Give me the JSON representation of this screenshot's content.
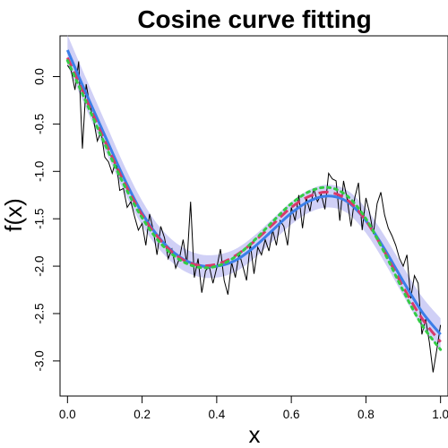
{
  "chart_data": {
    "type": "line",
    "title": "Cosine curve fitting",
    "xlabel": "x",
    "ylabel": "f(x)",
    "xlim": [
      -0.02,
      1.02
    ],
    "ylim": [
      -3.37,
      0.43
    ],
    "xticks": [
      "0.0",
      "0.2",
      "0.4",
      "0.6",
      "0.8",
      "1.0"
    ],
    "yticks": [
      "0.0",
      "-0.5",
      "-1.0",
      "-1.5",
      "-2.0",
      "-2.5",
      "-3.0"
    ],
    "colors": {
      "observed": "#000000",
      "band": "#c8c8f4",
      "blue": "#3b7ee8",
      "red": "#d8386a",
      "green": "#33cc44"
    },
    "series": [
      {
        "style": "thin black polyline",
        "x": [
          0.0,
          0.01,
          0.02,
          0.03,
          0.04,
          0.05,
          0.06,
          0.07,
          0.08,
          0.09,
          0.1,
          0.11,
          0.12,
          0.13,
          0.14,
          0.15,
          0.16,
          0.17,
          0.18,
          0.19,
          0.2,
          0.21,
          0.22,
          0.23,
          0.24,
          0.25,
          0.26,
          0.27,
          0.28,
          0.29,
          0.3,
          0.31,
          0.32,
          0.33,
          0.34,
          0.35,
          0.36,
          0.37,
          0.38,
          0.39,
          0.4,
          0.41,
          0.42,
          0.43,
          0.44,
          0.45,
          0.46,
          0.47,
          0.48,
          0.49,
          0.5,
          0.51,
          0.52,
          0.53,
          0.54,
          0.55,
          0.56,
          0.57,
          0.58,
          0.59,
          0.6,
          0.61,
          0.62,
          0.63,
          0.64,
          0.65,
          0.66,
          0.67,
          0.68,
          0.69,
          0.7,
          0.71,
          0.72,
          0.73,
          0.74,
          0.75,
          0.76,
          0.77,
          0.78,
          0.79,
          0.8,
          0.81,
          0.82,
          0.83,
          0.84,
          0.85,
          0.86,
          0.87,
          0.88,
          0.89,
          0.9,
          0.91,
          0.92,
          0.93,
          0.94,
          0.95,
          0.96,
          0.97,
          0.98,
          0.99,
          1.0
        ],
        "y": [
          0.12,
          0.06,
          -0.14,
          0.16,
          -0.76,
          -0.08,
          -0.3,
          -0.46,
          -0.68,
          -0.58,
          -0.85,
          -0.9,
          -1.02,
          -0.88,
          -1.2,
          -1.18,
          -1.38,
          -1.32,
          -1.48,
          -1.62,
          -1.55,
          -1.78,
          -1.45,
          -1.62,
          -1.88,
          -1.58,
          -1.7,
          -1.92,
          -1.82,
          -2.02,
          -1.92,
          -1.72,
          -1.98,
          -1.32,
          -2.12,
          -1.92,
          -2.28,
          -2.05,
          -2.0,
          -2.18,
          -2.02,
          -1.82,
          -2.15,
          -2.3,
          -1.96,
          -2.12,
          -1.86,
          -2.0,
          -2.15,
          -1.76,
          -2.08,
          -1.8,
          -1.88,
          -1.72,
          -1.84,
          -1.62,
          -1.78,
          -1.52,
          -1.58,
          -1.78,
          -1.38,
          -1.52,
          -1.25,
          -1.6,
          -1.28,
          -1.42,
          -1.18,
          -1.32,
          -1.24,
          -1.4,
          -1.02,
          -1.08,
          -1.1,
          -1.52,
          -1.1,
          -1.3,
          -1.58,
          -1.28,
          -1.12,
          -1.62,
          -1.28,
          -1.44,
          -1.66,
          -1.34,
          -1.22,
          -1.46,
          -1.6,
          -1.68,
          -1.78,
          -1.92,
          -2.0,
          -1.88,
          -2.34,
          -2.1,
          -2.18,
          -2.72,
          -2.56,
          -2.8,
          -3.12,
          -2.88,
          -2.62
        ]
      },
      {
        "style": "solid blue curve with shaded band",
        "x": [
          0.0,
          0.05,
          0.1,
          0.15,
          0.2,
          0.25,
          0.3,
          0.35,
          0.4,
          0.45,
          0.5,
          0.55,
          0.6,
          0.65,
          0.7,
          0.75,
          0.8,
          0.85,
          0.9,
          0.95,
          1.0
        ],
        "y": [
          0.28,
          -0.18,
          -0.62,
          -1.06,
          -1.44,
          -1.72,
          -1.9,
          -1.99,
          -2.0,
          -1.94,
          -1.8,
          -1.62,
          -1.44,
          -1.31,
          -1.26,
          -1.32,
          -1.52,
          -1.82,
          -2.16,
          -2.48,
          -2.72
        ],
        "band": [
          0.16,
          0.16,
          0.15,
          0.14,
          0.13,
          0.12,
          0.12,
          0.12,
          0.12,
          0.12,
          0.12,
          0.12,
          0.12,
          0.12,
          0.12,
          0.12,
          0.13,
          0.14,
          0.15,
          0.16,
          0.17
        ]
      },
      {
        "style": "dashed red curve",
        "x": [
          0.0,
          0.05,
          0.1,
          0.15,
          0.2,
          0.25,
          0.3,
          0.35,
          0.4,
          0.45,
          0.5,
          0.55,
          0.6,
          0.65,
          0.7,
          0.75,
          0.8,
          0.85,
          0.9,
          0.95,
          1.0
        ],
        "y": [
          0.2,
          -0.24,
          -0.68,
          -1.1,
          -1.46,
          -1.73,
          -1.91,
          -1.99,
          -1.98,
          -1.89,
          -1.74,
          -1.56,
          -1.38,
          -1.26,
          -1.22,
          -1.3,
          -1.52,
          -1.85,
          -2.22,
          -2.55,
          -2.8
        ]
      },
      {
        "style": "dotted green curve",
        "x": [
          0.0,
          0.05,
          0.1,
          0.15,
          0.2,
          0.25,
          0.3,
          0.35,
          0.4,
          0.45,
          0.5,
          0.55,
          0.6,
          0.65,
          0.7,
          0.75,
          0.8,
          0.85,
          0.9,
          0.95,
          1.0
        ],
        "y": [
          0.17,
          -0.27,
          -0.71,
          -1.13,
          -1.49,
          -1.76,
          -1.93,
          -2.01,
          -2.0,
          -1.9,
          -1.73,
          -1.53,
          -1.34,
          -1.21,
          -1.17,
          -1.26,
          -1.5,
          -1.86,
          -2.26,
          -2.62,
          -2.88
        ]
      }
    ]
  }
}
